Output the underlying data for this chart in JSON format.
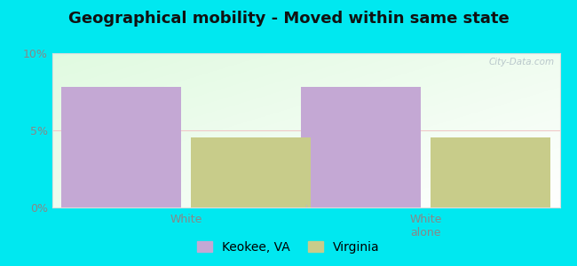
{
  "title": "Geographical mobility - Moved within same state",
  "groups": [
    "White",
    "White\nalone"
  ],
  "series": [
    {
      "label": "Keokee, VA",
      "values": [
        7.84,
        7.84
      ],
      "color": "#c4a8d4"
    },
    {
      "label": "Virginia",
      "values": [
        4.55,
        4.55
      ],
      "color": "#c8cc8a"
    }
  ],
  "ylim": [
    0,
    10
  ],
  "yticks": [
    0,
    5,
    10
  ],
  "ytick_labels": [
    "0%",
    "5%",
    "10%"
  ],
  "background_outer": "#00e8f0",
  "grid_color": "#f0c8c8",
  "bar_width": 0.25,
  "title_fontsize": 13,
  "tick_fontsize": 9,
  "legend_fontsize": 10,
  "watermark": "City-Data.com"
}
